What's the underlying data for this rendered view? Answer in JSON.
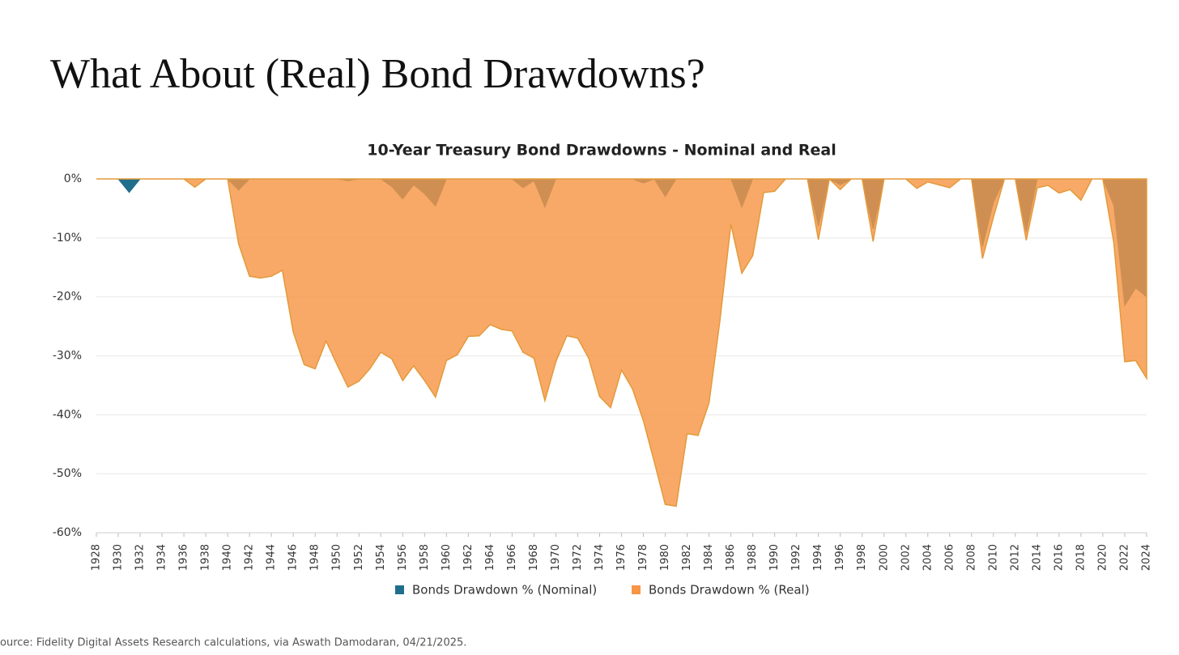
{
  "header": {
    "title": "What About (Real) Bond Drawdowns?"
  },
  "chart_data": {
    "type": "area",
    "title": "10-Year Treasury Bond Drawdowns - Nominal and Real",
    "x": [
      1928,
      1929,
      1930,
      1931,
      1932,
      1933,
      1934,
      1935,
      1936,
      1937,
      1938,
      1939,
      1940,
      1941,
      1942,
      1943,
      1944,
      1945,
      1946,
      1947,
      1948,
      1949,
      1950,
      1951,
      1952,
      1953,
      1954,
      1955,
      1956,
      1957,
      1958,
      1959,
      1960,
      1961,
      1962,
      1963,
      1964,
      1965,
      1966,
      1967,
      1968,
      1969,
      1970,
      1971,
      1972,
      1973,
      1974,
      1975,
      1976,
      1977,
      1978,
      1979,
      1980,
      1981,
      1982,
      1983,
      1984,
      1985,
      1986,
      1987,
      1988,
      1989,
      1990,
      1991,
      1992,
      1993,
      1994,
      1995,
      1996,
      1997,
      1998,
      1999,
      2000,
      2001,
      2002,
      2003,
      2004,
      2005,
      2006,
      2007,
      2008,
      2009,
      2010,
      2011,
      2012,
      2013,
      2014,
      2015,
      2016,
      2017,
      2018,
      2019,
      2020,
      2021,
      2022,
      2023,
      2024
    ],
    "series": [
      {
        "name": "Bonds Drawdown % (Nominal)",
        "color": "#1f6e8c",
        "values": [
          0,
          0,
          0,
          -2.3,
          0,
          0,
          0,
          0,
          0,
          0,
          0,
          0,
          0,
          -1.9,
          0,
          0,
          0,
          0,
          0,
          0,
          0,
          0,
          0,
          -0.3,
          0,
          0,
          0,
          -1.3,
          -3.4,
          -1,
          -2.5,
          -4.6,
          0,
          0,
          0,
          0,
          0,
          0,
          0,
          -1.5,
          -0.3,
          -4.8,
          0,
          0,
          0,
          0,
          0,
          0,
          0,
          0,
          -0.7,
          0,
          -3,
          0,
          0,
          0,
          0,
          0,
          0,
          -4.8,
          0,
          0,
          0,
          0,
          0,
          0,
          -8,
          0,
          -1,
          0,
          0,
          -8.5,
          0,
          0,
          0,
          0,
          0,
          0,
          0,
          0,
          0,
          -11.5,
          -4,
          0,
          0,
          -9,
          0,
          0,
          0,
          0,
          0,
          0,
          0,
          -4.5,
          -21.5,
          -18.5,
          -20
        ]
      },
      {
        "name": "Bonds Drawdown % (Real)",
        "color": "#f79646",
        "values": [
          0,
          0,
          0,
          0,
          0,
          0,
          0,
          0,
          0,
          -1.4,
          0,
          0,
          0,
          -11,
          -16.5,
          -16.8,
          -16.5,
          -15.5,
          -26,
          -31.5,
          -32.2,
          -27.5,
          -31.5,
          -35.3,
          -34.3,
          -32.2,
          -29.4,
          -30.5,
          -34.2,
          -31.7,
          -34.2,
          -37,
          -30.8,
          -29.8,
          -26.7,
          -26.6,
          -24.7,
          -25.5,
          -25.8,
          -29.4,
          -30.4,
          -37.6,
          -31,
          -26.6,
          -27,
          -30.4,
          -36.9,
          -38.8,
          -32.4,
          -35.6,
          -41,
          -48,
          -55.2,
          -55.5,
          -43.2,
          -43.5,
          -38,
          -24,
          -7.7,
          -16,
          -13,
          -2.3,
          -2.1,
          0,
          0,
          0,
          -10.3,
          0,
          -1.8,
          0,
          0,
          -10.6,
          0,
          0,
          0,
          -1.6,
          -0.5,
          -1,
          -1.5,
          0,
          0,
          -13.5,
          -6.5,
          0,
          0,
          -10.4,
          -1.5,
          -1.1,
          -2.4,
          -1.8,
          -3.6,
          0,
          0,
          -10.8,
          -31,
          -30.8,
          -33.8
        ]
      }
    ],
    "xlim": [
      1928,
      2024
    ],
    "xticks": [
      1928,
      1930,
      1932,
      1934,
      1936,
      1938,
      1940,
      1942,
      1944,
      1946,
      1948,
      1950,
      1952,
      1954,
      1956,
      1958,
      1960,
      1962,
      1964,
      1966,
      1968,
      1970,
      1972,
      1974,
      1976,
      1978,
      1980,
      1982,
      1984,
      1986,
      1988,
      1990,
      1992,
      1994,
      1996,
      1998,
      2000,
      2002,
      2004,
      2006,
      2008,
      2010,
      2012,
      2014,
      2016,
      2018,
      2020,
      2022,
      2024
    ],
    "ylim": [
      -60,
      0
    ],
    "yticks": [
      {
        "value": 0,
        "label": "0%"
      },
      {
        "value": -10,
        "label": "-10%"
      },
      {
        "value": -20,
        "label": "-20%"
      },
      {
        "value": -30,
        "label": "-30%"
      },
      {
        "value": -40,
        "label": "-40%"
      },
      {
        "value": -50,
        "label": "-50%"
      },
      {
        "value": -60,
        "label": "-60%"
      }
    ],
    "grid": true,
    "legend": "bottom"
  },
  "footer": {
    "source": "ource: Fidelity Digital Assets Research calculations, via Aswath Damodaran, 04/21/2025."
  }
}
